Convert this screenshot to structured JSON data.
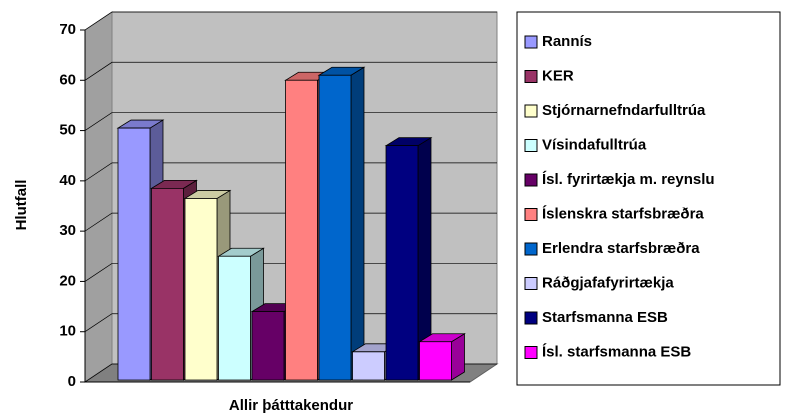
{
  "chart_data": {
    "type": "bar3d",
    "categories": [
      "Allir þátttakendur"
    ],
    "y_label": "Hlutfall",
    "ylim": [
      0,
      70
    ],
    "yticks": [
      0,
      10,
      20,
      30,
      40,
      50,
      60,
      70
    ],
    "grid": true,
    "legend": "right",
    "series": [
      {
        "name": "Rannís",
        "color": "#9999ff",
        "values": [
          50.5
        ]
      },
      {
        "name": "KER",
        "color": "#993366",
        "values": [
          38.5
        ]
      },
      {
        "name": "Stjórnarnefndarfulltrúa",
        "color": "#ffffcc",
        "values": [
          36.5
        ]
      },
      {
        "name": "Vísindafulltrúa",
        "color": "#ccffff",
        "values": [
          25
        ]
      },
      {
        "name": "Ísl. fyrirtækja m. reynslu",
        "color": "#660066",
        "values": [
          14
        ]
      },
      {
        "name": "Íslenskra starfsbræðra",
        "color": "#ff8080",
        "values": [
          60
        ]
      },
      {
        "name": "Erlendra starfsbræðra",
        "color": "#0066cc",
        "values": [
          61
        ]
      },
      {
        "name": "Ráðgjafafyrirtækja",
        "color": "#ccccff",
        "values": [
          6
        ]
      },
      {
        "name": "Starfsmanna ESB",
        "color": "#000080",
        "values": [
          47
        ]
      },
      {
        "name": "Ísl. starfsmanna ESB",
        "color": "#ff00ff",
        "values": [
          8
        ]
      }
    ]
  }
}
